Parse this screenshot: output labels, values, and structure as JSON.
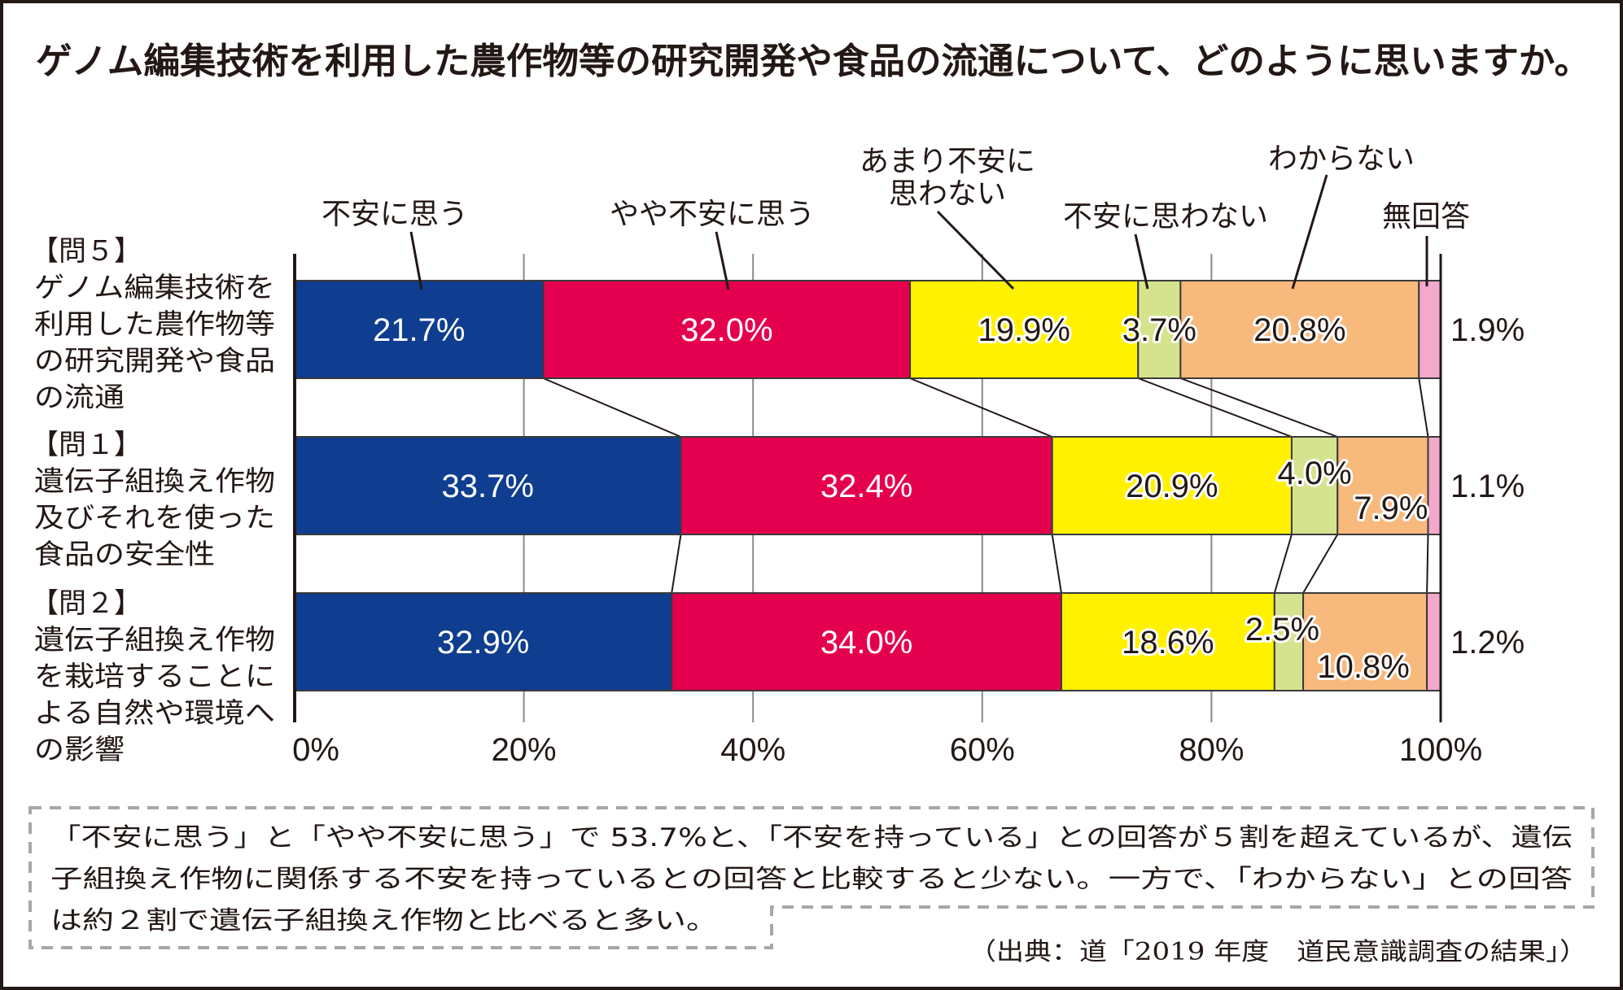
{
  "chart_data": {
    "type": "bar",
    "orientation": "horizontal-stacked-100",
    "title": "ゲノム編集技術を利用した農作物等の研究開発や食品の流通について、どのように思いますか。",
    "xlim": [
      0,
      100
    ],
    "x_ticks": [
      "0%",
      "20%",
      "40%",
      "60%",
      "80%",
      "100%"
    ],
    "grid": true,
    "legend_labels": [
      {
        "lines": [
          "不安に思う"
        ]
      },
      {
        "lines": [
          "やや不安に思う"
        ]
      },
      {
        "lines": [
          "あまり不安に",
          "思わない"
        ]
      },
      {
        "lines": [
          "不安に思わない"
        ]
      },
      {
        "lines": [
          "わからない"
        ]
      },
      {
        "lines": [
          "無回答"
        ]
      }
    ],
    "series": [
      {
        "name": "不安に思う",
        "color": "#0f3d8f",
        "values": [
          21.7,
          33.7,
          32.9
        ],
        "labels": [
          "21.7%",
          "33.7%",
          "32.9%"
        ]
      },
      {
        "name": "やや不安に思う",
        "color": "#e5004f",
        "values": [
          32.0,
          32.4,
          34.0
        ],
        "labels": [
          "32.0%",
          "32.4%",
          "34.0%"
        ]
      },
      {
        "name": "あまり不安に思わない",
        "color": "#fff100",
        "values": [
          19.9,
          20.9,
          18.6
        ],
        "labels": [
          "19.9%",
          "20.9%",
          "18.6%"
        ]
      },
      {
        "name": "不安に思わない",
        "color": "#d5e38f",
        "values": [
          3.7,
          4.0,
          2.5
        ],
        "labels": [
          "3.7%",
          "4.0%",
          "2.5%"
        ]
      },
      {
        "name": "わからない",
        "color": "#f8b97c",
        "values": [
          20.8,
          7.9,
          10.8
        ],
        "labels": [
          "20.8%",
          "7.9%",
          "10.8%"
        ]
      },
      {
        "name": "無回答",
        "color": "#f3a8cc",
        "values": [
          1.9,
          1.1,
          1.2
        ],
        "labels": [
          "1.9%",
          "1.1%",
          "1.2%"
        ]
      }
    ],
    "categories": [
      {
        "id": "【問５】",
        "lines": [
          "ゲノム編集技術を",
          "利用した農作物等",
          "の研究開発や食品",
          "の流通"
        ]
      },
      {
        "id": "【問１】",
        "lines": [
          "遺伝子組換え作物",
          "及びそれを使った",
          "食品の安全性"
        ]
      },
      {
        "id": "【問２】",
        "lines": [
          "遺伝子組換え作物",
          "を栽培することに",
          "よる自然や環境へ",
          "の影響"
        ]
      }
    ]
  },
  "note": {
    "lines": [
      "「不安に思う」と「やや不安に思う」で 53.7%と、「不安を持っている」との回答が５割を超えているが、遺伝",
      "子組換え作物に関係する不安を持っているとの回答と比較すると少ない。一方で、「わからない」との回答",
      "は約２割で遺伝子組換え作物と比べると多い。"
    ]
  },
  "citation": "（出典：道「2019 年度　道民意識調査の結果」）"
}
